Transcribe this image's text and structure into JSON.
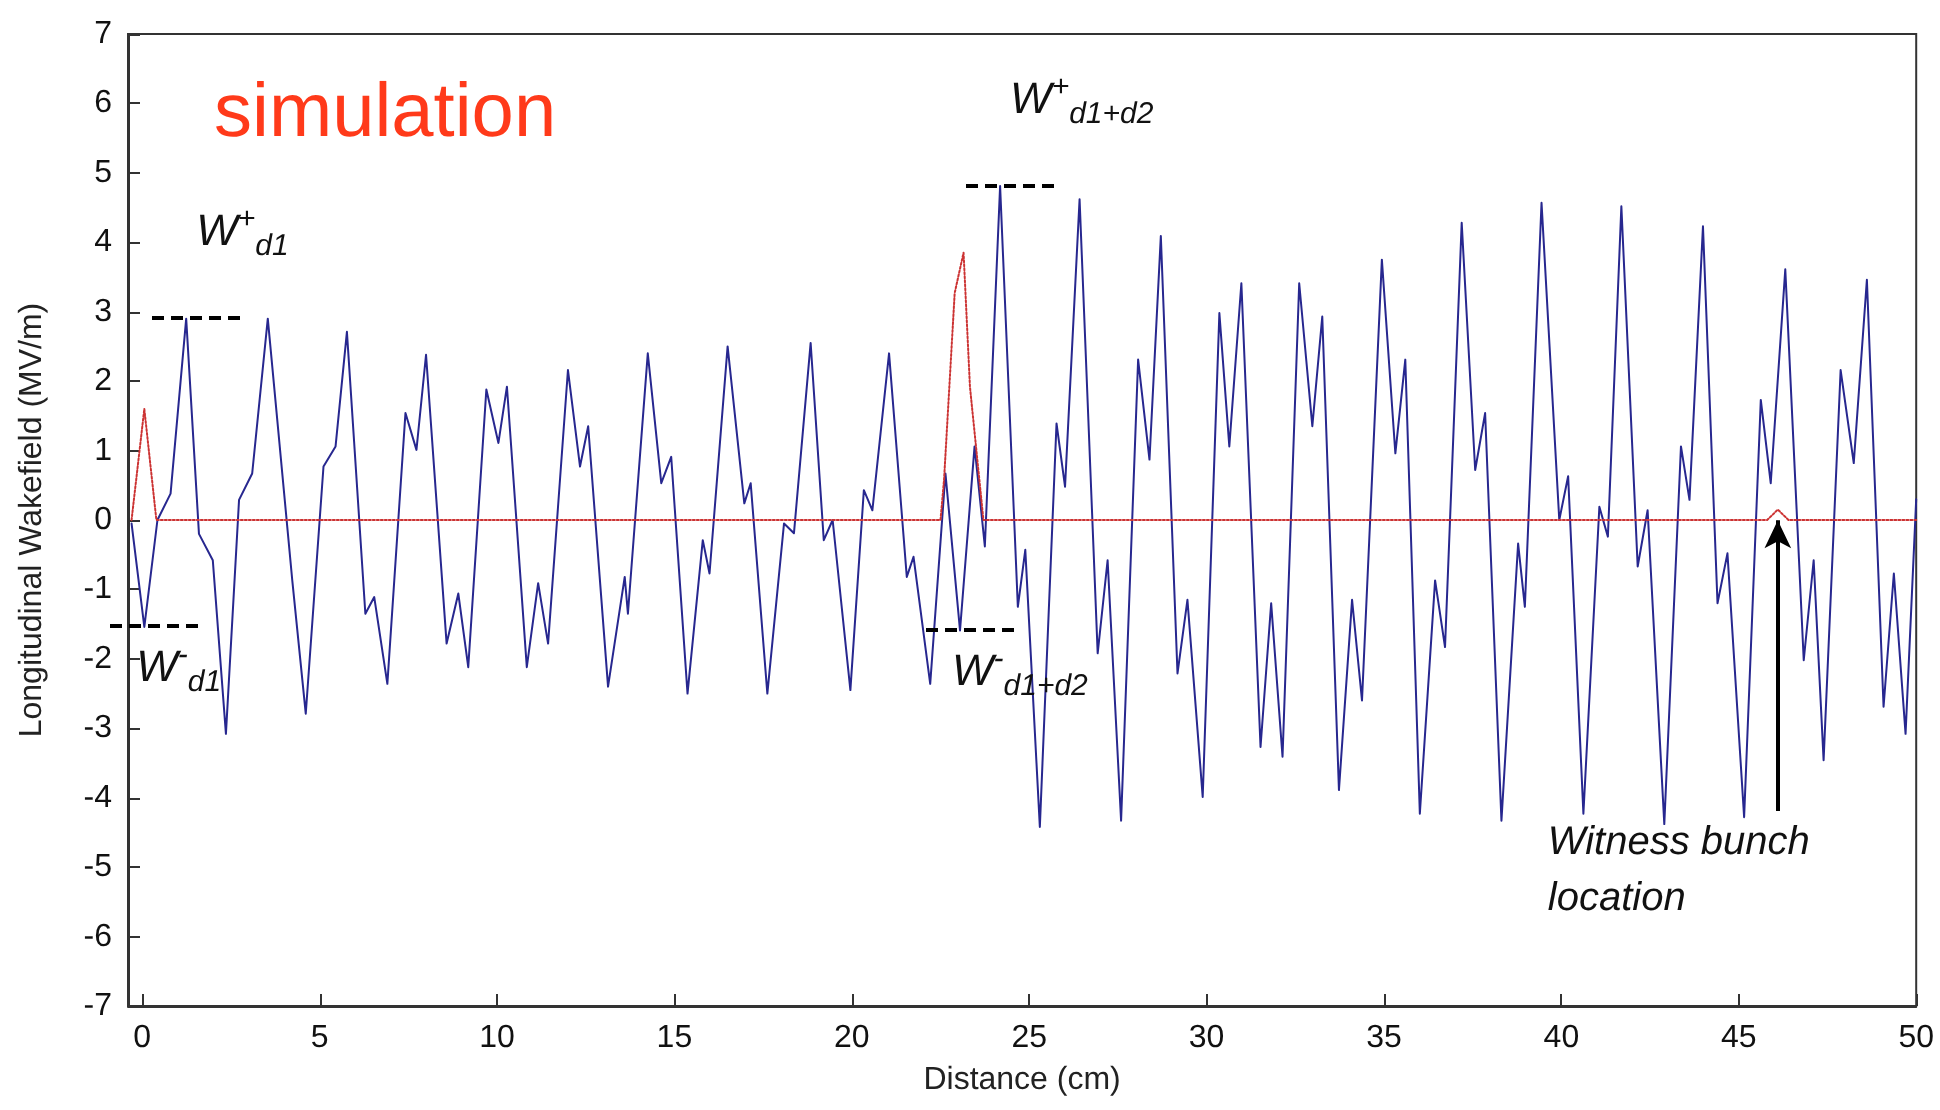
{
  "chart_data": {
    "type": "line",
    "title": "simulation",
    "xlabel": "Distance (cm)",
    "ylabel": "Longitudinal Wakefield (MV/m)",
    "xlim": [
      -0.4,
      50
    ],
    "ylim": [
      -7,
      7
    ],
    "xticks": [
      0,
      5,
      10,
      15,
      20,
      25,
      30,
      35,
      40,
      45,
      50
    ],
    "yticks": [
      -7,
      -6,
      -5,
      -4,
      -3,
      -2,
      -1,
      0,
      1,
      2,
      3,
      4,
      5,
      6,
      7
    ],
    "grid": false,
    "marker": "none",
    "series": [
      {
        "color": "#27278f",
        "line_style": "solid",
        "x": [
          -0.3,
          0.06,
          0.43,
          0.8,
          1.24,
          1.6,
          1.99,
          2.36,
          2.73,
          3.1,
          3.54,
          4.23,
          4.61,
          5.11,
          5.45,
          5.77,
          6.29,
          6.54,
          6.91,
          7.42,
          7.73,
          8.0,
          8.58,
          8.91,
          9.19,
          9.7,
          10.04,
          10.28,
          10.84,
          11.16,
          11.44,
          12.0,
          12.34,
          12.57,
          13.13,
          13.6,
          13.69,
          14.25,
          14.63,
          14.91,
          15.37,
          15.8,
          15.99,
          16.5,
          16.97,
          17.15,
          17.62,
          18.09,
          18.37,
          18.84,
          19.21,
          19.46,
          19.96,
          20.34,
          20.58,
          21.05,
          21.55,
          21.74,
          22.21,
          22.64,
          23.05,
          23.46,
          23.75,
          24.18,
          24.68,
          24.89,
          25.3,
          25.77,
          26.01,
          26.42,
          26.93,
          27.21,
          27.59,
          28.07,
          28.39,
          28.71,
          29.18,
          29.46,
          29.89,
          30.36,
          30.64,
          30.98,
          31.52,
          31.82,
          32.14,
          32.61,
          32.98,
          33.26,
          33.73,
          34.1,
          34.38,
          34.94,
          35.32,
          35.6,
          36.01,
          36.44,
          36.72,
          37.19,
          37.57,
          37.85,
          38.31,
          38.78,
          38.97,
          39.44,
          39.94,
          40.19,
          40.62,
          41.07,
          41.31,
          41.69,
          42.15,
          42.43,
          42.9,
          43.37,
          43.61,
          43.99,
          44.4,
          44.68,
          45.15,
          45.62,
          45.9,
          46.31,
          46.83,
          47.11,
          47.39,
          47.87,
          48.24,
          48.61,
          49.08,
          49.37,
          49.7,
          50
        ],
        "values": [
          -0.05,
          -1.54,
          0,
          0.38,
          2.9,
          -0.2,
          -0.58,
          -3.08,
          0.29,
          0.67,
          2.9,
          -0.87,
          -2.79,
          0.77,
          1.06,
          2.71,
          -1.35,
          -1.11,
          -2.36,
          1.54,
          1.01,
          2.38,
          -1.78,
          -1.06,
          -2.12,
          1.88,
          1.11,
          1.92,
          -2.12,
          -0.91,
          -1.78,
          2.16,
          0.77,
          1.35,
          -2.4,
          -0.82,
          -1.35,
          2.4,
          0.53,
          0.91,
          -2.5,
          -0.29,
          -0.77,
          2.5,
          0.24,
          0.53,
          -2.5,
          -0.05,
          -0.19,
          2.55,
          -0.29,
          0,
          -2.45,
          0.43,
          0.14,
          2.4,
          -0.82,
          -0.53,
          -2.36,
          0.67,
          -1.59,
          1.06,
          -0.38,
          4.81,
          -1.25,
          -0.43,
          -4.42,
          1.39,
          0.48,
          4.62,
          -1.92,
          -0.58,
          -4.33,
          2.31,
          0.87,
          4.09,
          -2.21,
          -1.15,
          -3.99,
          2.98,
          1.06,
          3.41,
          -3.27,
          -1.2,
          -3.41,
          3.41,
          1.35,
          2.93,
          -3.89,
          -1.15,
          -2.6,
          3.75,
          0.96,
          2.31,
          -4.23,
          -0.87,
          -1.83,
          4.28,
          0.72,
          1.54,
          -4.33,
          -0.34,
          -1.25,
          4.57,
          0,
          0.63,
          -4.23,
          0.19,
          -0.24,
          4.52,
          -0.67,
          0.14,
          -4.38,
          1.06,
          0.29,
          4.23,
          -1.2,
          -0.48,
          -4.28,
          1.73,
          0.53,
          3.61,
          -2.02,
          -0.58,
          -3.46,
          2.16,
          0.82,
          3.46,
          -2.69,
          -0.77,
          -3.08,
          0.3
        ]
      },
      {
        "color": "#cc3333",
        "line_style": "dotted",
        "x": [
          -0.3,
          0.06,
          0.4,
          22.5,
          22.6,
          22.9,
          23.15,
          23.33,
          23.71,
          45.8,
          46.1,
          46.4,
          50
        ],
        "values": [
          0,
          1.6,
          0,
          0,
          0.58,
          3.27,
          3.85,
          1.92,
          0,
          0,
          0.15,
          0,
          0
        ]
      }
    ],
    "annotations": [
      {
        "text": "W$^{+}$$_{d1}$",
        "x": 1.24,
        "y": 2.9
      },
      {
        "text": "W$^{-}$$_{d1}$",
        "x": 0.06,
        "y": -1.54
      },
      {
        "text": "W$^{+}$$_{d1+d2}$",
        "x": 24.18,
        "y": 4.81
      },
      {
        "text": "W$^{-}$$_{d1+d2}$",
        "x": 23.05,
        "y": -1.59
      },
      {
        "text": "Witness bunch location",
        "x": 46.1,
        "y": 0.15
      }
    ]
  }
}
